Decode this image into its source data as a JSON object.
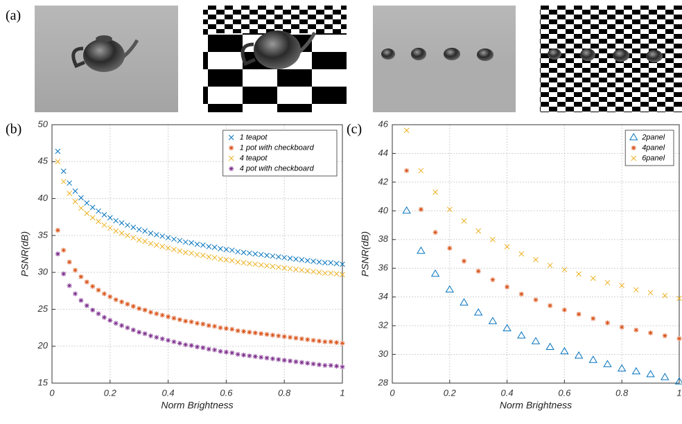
{
  "panel_labels": {
    "a": "(a)",
    "b": "(b)",
    "c": "(c)"
  },
  "chart_data": [
    {
      "type": "scatter",
      "xlabel": "Norm Brightness",
      "ylabel": "PSNR(dB)",
      "xlim": [
        0,
        1
      ],
      "ylim": [
        15,
        50
      ],
      "xticks": [
        0,
        0.2,
        0.4,
        0.6,
        0.8,
        1
      ],
      "yticks": [
        15,
        20,
        25,
        30,
        35,
        40,
        45,
        50
      ],
      "grid": true,
      "legend": "top-right",
      "x": [
        0.02,
        0.04,
        0.06,
        0.08,
        0.1,
        0.12,
        0.14,
        0.16,
        0.18,
        0.2,
        0.22,
        0.24,
        0.26,
        0.28,
        0.3,
        0.32,
        0.34,
        0.36,
        0.38,
        0.4,
        0.42,
        0.44,
        0.46,
        0.48,
        0.5,
        0.52,
        0.54,
        0.56,
        0.58,
        0.6,
        0.62,
        0.64,
        0.66,
        0.68,
        0.7,
        0.72,
        0.74,
        0.76,
        0.78,
        0.8,
        0.82,
        0.84,
        0.86,
        0.88,
        0.9,
        0.92,
        0.94,
        0.96,
        0.98,
        1.0
      ],
      "series": [
        {
          "name": "1 teapot",
          "color": "#0072bd",
          "marker": "x",
          "values": [
            46.4,
            43.7,
            42.1,
            41.0,
            40.1,
            39.4,
            38.8,
            38.3,
            37.8,
            37.4,
            37.0,
            36.7,
            36.4,
            36.1,
            35.8,
            35.6,
            35.3,
            35.1,
            34.9,
            34.7,
            34.5,
            34.3,
            34.1,
            34.0,
            33.8,
            33.7,
            33.5,
            33.4,
            33.2,
            33.1,
            33.0,
            32.8,
            32.7,
            32.6,
            32.5,
            32.4,
            32.3,
            32.2,
            32.1,
            32.0,
            31.9,
            31.8,
            31.7,
            31.6,
            31.5,
            31.4,
            31.3,
            31.3,
            31.2,
            31.1
          ]
        },
        {
          "name": "1 pot with checkboard",
          "color": "#d95319",
          "marker": "star",
          "values": [
            35.7,
            33.0,
            31.4,
            30.3,
            29.4,
            28.7,
            28.1,
            27.6,
            27.1,
            26.7,
            26.3,
            26.0,
            25.7,
            25.4,
            25.1,
            24.9,
            24.6,
            24.4,
            24.2,
            24.0,
            23.8,
            23.6,
            23.4,
            23.3,
            23.1,
            23.0,
            22.8,
            22.7,
            22.5,
            22.4,
            22.3,
            22.1,
            22.0,
            21.9,
            21.8,
            21.7,
            21.6,
            21.5,
            21.4,
            21.3,
            21.2,
            21.1,
            21.0,
            20.9,
            20.8,
            20.7,
            20.6,
            20.6,
            20.5,
            20.4
          ]
        },
        {
          "name": "4 teapot",
          "color": "#edb120",
          "marker": "x",
          "values": [
            45.0,
            42.3,
            40.7,
            39.6,
            38.7,
            38.0,
            37.4,
            36.9,
            36.4,
            36.0,
            35.6,
            35.3,
            35.0,
            34.7,
            34.4,
            34.2,
            33.9,
            33.7,
            33.5,
            33.3,
            33.1,
            32.9,
            32.7,
            32.6,
            32.4,
            32.3,
            32.1,
            32.0,
            31.8,
            31.7,
            31.6,
            31.4,
            31.3,
            31.2,
            31.1,
            31.0,
            30.9,
            30.8,
            30.7,
            30.6,
            30.5,
            30.4,
            30.3,
            30.2,
            30.1,
            30.0,
            29.9,
            29.9,
            29.8,
            29.7
          ]
        },
        {
          "name": "4 pot with checkboard",
          "color": "#7e2f8e",
          "marker": "star",
          "values": [
            32.5,
            29.8,
            28.2,
            27.1,
            26.2,
            25.5,
            24.9,
            24.4,
            23.9,
            23.5,
            23.1,
            22.8,
            22.5,
            22.2,
            21.9,
            21.7,
            21.4,
            21.2,
            21.0,
            20.8,
            20.6,
            20.4,
            20.2,
            20.1,
            19.9,
            19.8,
            19.6,
            19.5,
            19.3,
            19.2,
            19.1,
            18.9,
            18.8,
            18.7,
            18.6,
            18.5,
            18.4,
            18.3,
            18.2,
            18.1,
            18.0,
            17.9,
            17.8,
            17.7,
            17.6,
            17.5,
            17.4,
            17.4,
            17.3,
            17.2
          ]
        }
      ]
    },
    {
      "type": "scatter",
      "xlabel": "Norm Brightness",
      "ylabel": "PSNR(dB)",
      "xlim": [
        0,
        1
      ],
      "ylim": [
        28,
        46
      ],
      "xticks": [
        0,
        0.2,
        0.4,
        0.6,
        0.8,
        1
      ],
      "yticks": [
        28,
        30,
        32,
        34,
        36,
        38,
        40,
        42,
        44,
        46
      ],
      "grid": true,
      "legend": "top-right",
      "x": [
        0.05,
        0.1,
        0.15,
        0.2,
        0.25,
        0.3,
        0.35,
        0.4,
        0.45,
        0.5,
        0.55,
        0.6,
        0.65,
        0.7,
        0.75,
        0.8,
        0.85,
        0.9,
        0.95,
        1.0
      ],
      "series": [
        {
          "name": "2panel",
          "color": "#0072bd",
          "marker": "triangle",
          "values": [
            40.0,
            37.2,
            35.6,
            34.5,
            33.6,
            32.9,
            32.3,
            31.8,
            31.3,
            30.9,
            30.5,
            30.2,
            29.9,
            29.6,
            29.3,
            29.0,
            28.8,
            28.6,
            28.4,
            28.1
          ]
        },
        {
          "name": "4panel",
          "color": "#d95319",
          "marker": "star",
          "values": [
            42.8,
            40.1,
            38.5,
            37.4,
            36.5,
            35.8,
            35.2,
            34.7,
            34.2,
            33.8,
            33.4,
            33.1,
            32.8,
            32.5,
            32.2,
            31.9,
            31.7,
            31.5,
            31.3,
            31.1
          ]
        },
        {
          "name": "6panel",
          "color": "#edb120",
          "marker": "x",
          "values": [
            45.6,
            42.8,
            41.3,
            40.1,
            39.3,
            38.6,
            38.0,
            37.5,
            37.0,
            36.6,
            36.2,
            35.9,
            35.6,
            35.3,
            35.0,
            34.8,
            34.5,
            34.3,
            34.1,
            33.9
          ]
        }
      ]
    }
  ]
}
